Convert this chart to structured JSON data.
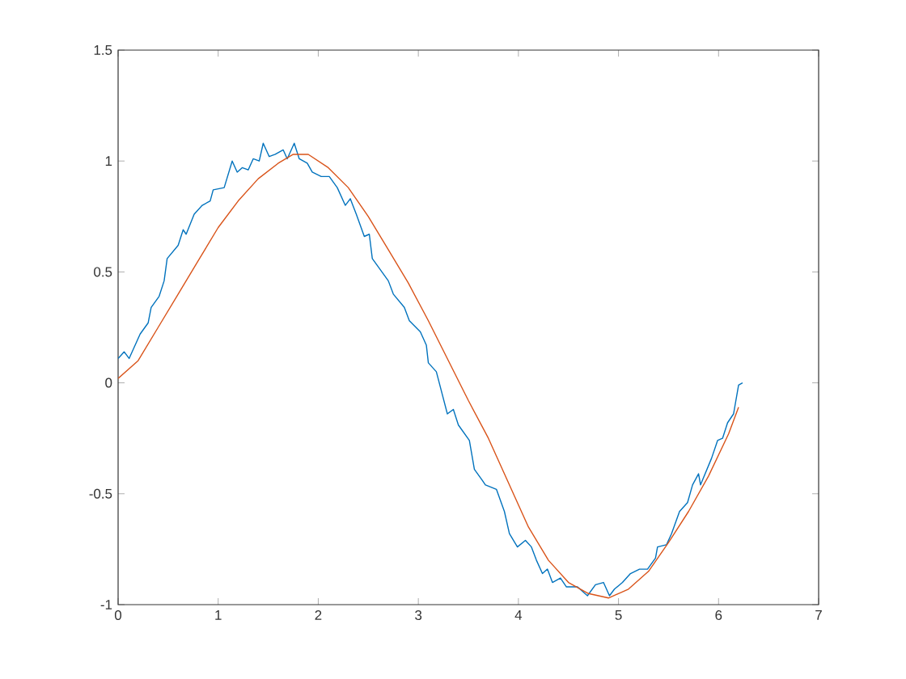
{
  "chart_data": {
    "type": "line",
    "xlim": [
      0,
      7
    ],
    "ylim": [
      -1,
      1.5
    ],
    "xticks": [
      0,
      1,
      2,
      3,
      4,
      5,
      6,
      7
    ],
    "yticks": [
      -1,
      -0.5,
      0,
      0.5,
      1,
      1.5
    ],
    "grid": false,
    "series": [
      {
        "color": "#0072bd",
        "x": [
          0.0,
          0.06,
          0.11,
          0.22,
          0.3,
          0.33,
          0.41,
          0.46,
          0.49,
          0.6,
          0.65,
          0.68,
          0.76,
          0.84,
          0.92,
          0.95,
          1.06,
          1.14,
          1.19,
          1.24,
          1.3,
          1.35,
          1.41,
          1.45,
          1.51,
          1.57,
          1.65,
          1.69,
          1.76,
          1.81,
          1.89,
          1.94,
          2.03,
          2.11,
          2.19,
          2.27,
          2.32,
          2.38,
          2.46,
          2.51,
          2.54,
          2.7,
          2.75,
          2.86,
          2.91,
          3.02,
          3.08,
          3.1,
          3.18,
          3.29,
          3.35,
          3.4,
          3.51,
          3.56,
          3.64,
          3.67,
          3.78,
          3.86,
          3.91,
          3.99,
          4.07,
          4.13,
          4.18,
          4.24,
          4.29,
          4.34,
          4.42,
          4.48,
          4.59,
          4.69,
          4.77,
          4.85,
          4.91,
          4.96,
          5.04,
          5.12,
          5.21,
          5.29,
          5.37,
          5.39,
          5.48,
          5.53,
          5.61,
          5.69,
          5.74,
          5.8,
          5.82,
          5.93,
          5.99,
          6.04,
          6.09,
          6.15,
          6.2,
          6.24
        ],
        "values": [
          0.11,
          0.14,
          0.11,
          0.22,
          0.27,
          0.34,
          0.39,
          0.46,
          0.56,
          0.62,
          0.69,
          0.67,
          0.76,
          0.8,
          0.82,
          0.87,
          0.88,
          1.0,
          0.95,
          0.97,
          0.96,
          1.01,
          1.0,
          1.08,
          1.02,
          1.03,
          1.05,
          1.01,
          1.08,
          1.01,
          0.99,
          0.95,
          0.93,
          0.93,
          0.88,
          0.8,
          0.83,
          0.76,
          0.66,
          0.67,
          0.56,
          0.46,
          0.4,
          0.34,
          0.28,
          0.23,
          0.17,
          0.09,
          0.05,
          -0.14,
          -0.12,
          -0.19,
          -0.26,
          -0.39,
          -0.44,
          -0.46,
          -0.48,
          -0.58,
          -0.68,
          -0.74,
          -0.71,
          -0.74,
          -0.8,
          -0.86,
          -0.84,
          -0.9,
          -0.88,
          -0.92,
          -0.92,
          -0.96,
          -0.91,
          -0.9,
          -0.96,
          -0.93,
          -0.9,
          -0.86,
          -0.84,
          -0.84,
          -0.79,
          -0.74,
          -0.73,
          -0.68,
          -0.58,
          -0.54,
          -0.46,
          -0.41,
          -0.46,
          -0.34,
          -0.26,
          -0.25,
          -0.18,
          -0.14,
          -0.01,
          0.0
        ]
      },
      {
        "color": "#d95319",
        "x": [
          0.0,
          0.2,
          0.4,
          0.6,
          0.8,
          1.0,
          1.2,
          1.4,
          1.6,
          1.75,
          1.9,
          2.1,
          2.3,
          2.5,
          2.7,
          2.9,
          3.1,
          3.3,
          3.5,
          3.7,
          3.9,
          4.1,
          4.3,
          4.5,
          4.7,
          4.9,
          5.1,
          5.3,
          5.5,
          5.7,
          5.9,
          6.1,
          6.2
        ],
        "values": [
          0.02,
          0.1,
          0.25,
          0.4,
          0.55,
          0.7,
          0.82,
          0.92,
          0.99,
          1.03,
          1.03,
          0.97,
          0.88,
          0.75,
          0.6,
          0.45,
          0.28,
          0.1,
          -0.08,
          -0.25,
          -0.45,
          -0.65,
          -0.8,
          -0.9,
          -0.95,
          -0.97,
          -0.93,
          -0.85,
          -0.72,
          -0.58,
          -0.42,
          -0.23,
          -0.11
        ]
      }
    ]
  }
}
